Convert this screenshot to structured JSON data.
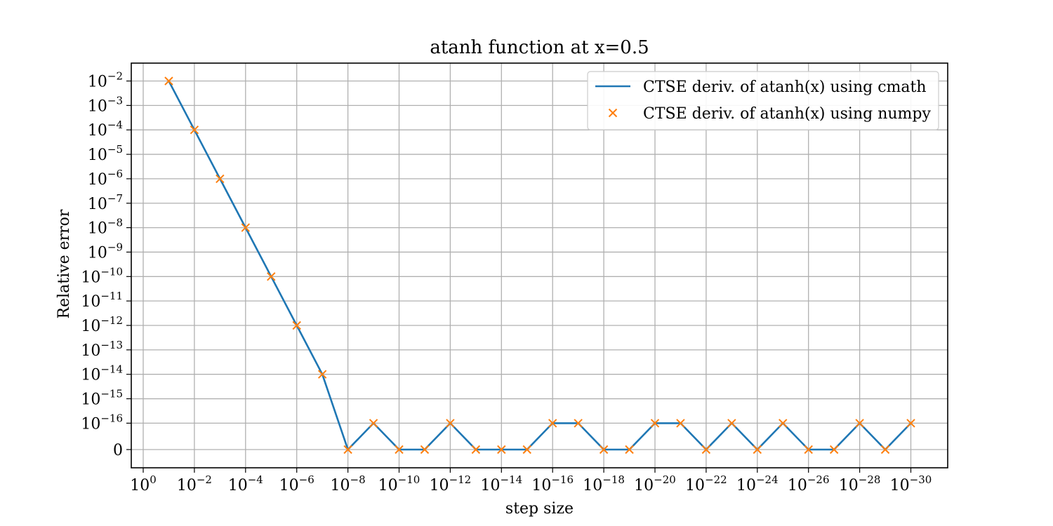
{
  "chart_data": {
    "type": "line",
    "title": "atanh function at x=0.5",
    "xlabel": "step size",
    "ylabel": "Relative error",
    "x_scale": "log (decreasing step size)",
    "y_scale": "symlog",
    "grid": true,
    "legend_position": "top-right",
    "x_exponents": [
      -1,
      -2,
      -3,
      -4,
      -5,
      -6,
      -7,
      -8,
      -9,
      -10,
      -11,
      -12,
      -13,
      -14,
      -15,
      -16,
      -17,
      -18,
      -19,
      -20,
      -21,
      -22,
      -23,
      -24,
      -25,
      -26,
      -27,
      -28,
      -29,
      -30
    ],
    "x_ticks": [
      {
        "base": "10",
        "exp": "0",
        "power": 0
      },
      {
        "base": "10",
        "exp": "−2",
        "power": -2
      },
      {
        "base": "10",
        "exp": "−4",
        "power": -4
      },
      {
        "base": "10",
        "exp": "−6",
        "power": -6
      },
      {
        "base": "10",
        "exp": "−8",
        "power": -8
      },
      {
        "base": "10",
        "exp": "−10",
        "power": -10
      },
      {
        "base": "10",
        "exp": "−12",
        "power": -12
      },
      {
        "base": "10",
        "exp": "−14",
        "power": -14
      },
      {
        "base": "10",
        "exp": "−16",
        "power": -16
      },
      {
        "base": "10",
        "exp": "−18",
        "power": -18
      },
      {
        "base": "10",
        "exp": "−20",
        "power": -20
      },
      {
        "base": "10",
        "exp": "−22",
        "power": -22
      },
      {
        "base": "10",
        "exp": "−24",
        "power": -24
      },
      {
        "base": "10",
        "exp": "−26",
        "power": -26
      },
      {
        "base": "10",
        "exp": "−28",
        "power": -28
      },
      {
        "base": "10",
        "exp": "−30",
        "power": -30
      }
    ],
    "y_ticks": [
      {
        "base": "10",
        "exp": "−2",
        "power": -2
      },
      {
        "base": "10",
        "exp": "−3",
        "power": -3
      },
      {
        "base": "10",
        "exp": "−4",
        "power": -4
      },
      {
        "base": "10",
        "exp": "−5",
        "power": -5
      },
      {
        "base": "10",
        "exp": "−6",
        "power": -6
      },
      {
        "base": "10",
        "exp": "−7",
        "power": -7
      },
      {
        "base": "10",
        "exp": "−8",
        "power": -8
      },
      {
        "base": "10",
        "exp": "−9",
        "power": -9
      },
      {
        "base": "10",
        "exp": "−10",
        "power": -10
      },
      {
        "base": "10",
        "exp": "−11",
        "power": -11
      },
      {
        "base": "10",
        "exp": "−12",
        "power": -12
      },
      {
        "base": "10",
        "exp": "−13",
        "power": -13
      },
      {
        "base": "10",
        "exp": "−14",
        "power": -14
      },
      {
        "base": "10",
        "exp": "−15",
        "power": -15
      },
      {
        "base": "10",
        "exp": "−16",
        "power": -16
      },
      {
        "base": "",
        "exp": "",
        "label": "0",
        "power": null
      }
    ],
    "series": [
      {
        "name": "CTSE deriv. of atanh(x) using cmath",
        "style": "line",
        "color": "#1f77b4",
        "y_exponents": [
          -2,
          -4,
          -6,
          -8,
          -10,
          -12,
          -14,
          null,
          -16,
          null,
          null,
          -16,
          null,
          null,
          null,
          -16,
          -16,
          null,
          null,
          -16,
          -16,
          null,
          -16,
          null,
          -16,
          null,
          null,
          -16,
          null,
          -16
        ]
      },
      {
        "name": "CTSE deriv. of atanh(x) using numpy",
        "style": "x-markers",
        "color": "#ff7f0e",
        "y_exponents": [
          -2,
          -4,
          -6,
          -8,
          -10,
          -12,
          -14,
          null,
          -16,
          null,
          null,
          -16,
          null,
          null,
          null,
          -16,
          -16,
          null,
          null,
          -16,
          -16,
          null,
          -16,
          null,
          -16,
          null,
          null,
          -16,
          null,
          -16
        ]
      }
    ],
    "y_value_note": "null exponent = relative error of 0"
  }
}
